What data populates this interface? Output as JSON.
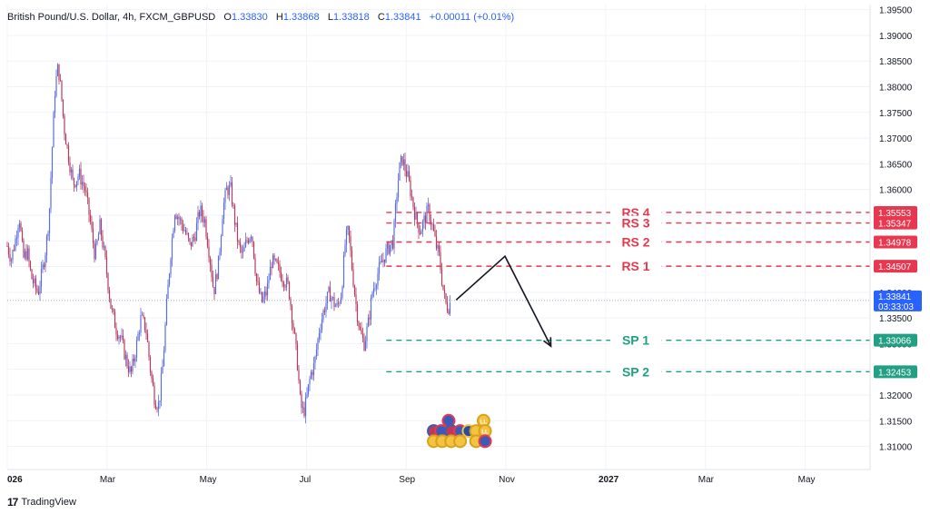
{
  "header": {
    "title": "British Pound/U.S. Dollar, 4h, FXCM_GBPUSD",
    "open_label": "O",
    "open": "1.33830",
    "high_label": "H",
    "high": "1.33868",
    "low_label": "L",
    "low": "1.33818",
    "close_label": "C",
    "close": "1.33841",
    "change": "+0.00011 (+0.01%)"
  },
  "brand": {
    "name": "TradingView",
    "logo_text": "17"
  },
  "colors": {
    "resistance": "#e8384f",
    "support": "#22a083",
    "up_candle": "#5b6ee1",
    "down_candle": "#b83b5e",
    "price_badge": "#2962ff",
    "grid": "#f0f3fa"
  },
  "chart_data": {
    "type": "candlestick",
    "title": "British Pound/U.S. Dollar, 4h, FXCM_GBPUSD",
    "y_ticks": [
      "1.39500",
      "1.39000",
      "1.38500",
      "1.38000",
      "1.37500",
      "1.37000",
      "1.36500",
      "1.36000",
      "1.35500",
      "1.35000",
      "1.34500",
      "1.34000",
      "1.33500",
      "1.33000",
      "1.32500",
      "1.32000",
      "1.31500",
      "1.31000"
    ],
    "ylim": [
      1.3055,
      1.396
    ],
    "x_ticks": [
      "026",
      "Mar",
      "May",
      "Jul",
      "Sep",
      "Nov",
      "2027",
      "Mar",
      "May"
    ],
    "x_tick_months": [
      0,
      2,
      4,
      6,
      8,
      10,
      12,
      14,
      16
    ],
    "xlim_months": [
      0,
      17.3
    ],
    "price_series": [
      {
        "m": 0.0,
        "p": 1.349
      },
      {
        "m": 0.08,
        "p": 1.3465
      },
      {
        "m": 0.16,
        "p": 1.35
      },
      {
        "m": 0.24,
        "p": 1.355
      },
      {
        "m": 0.32,
        "p": 1.3465
      },
      {
        "m": 0.4,
        "p": 1.348
      },
      {
        "m": 0.48,
        "p": 1.343
      },
      {
        "m": 0.56,
        "p": 1.341
      },
      {
        "m": 0.62,
        "p": 1.34
      },
      {
        "m": 0.7,
        "p": 1.344
      },
      {
        "m": 0.78,
        "p": 1.349
      },
      {
        "m": 0.84,
        "p": 1.355
      },
      {
        "m": 0.9,
        "p": 1.368
      },
      {
        "m": 0.96,
        "p": 1.38
      },
      {
        "m": 1.02,
        "p": 1.384
      },
      {
        "m": 1.08,
        "p": 1.379
      },
      {
        "m": 1.14,
        "p": 1.372
      },
      {
        "m": 1.22,
        "p": 1.367
      },
      {
        "m": 1.32,
        "p": 1.361
      },
      {
        "m": 1.44,
        "p": 1.363
      },
      {
        "m": 1.56,
        "p": 1.36
      },
      {
        "m": 1.66,
        "p": 1.354
      },
      {
        "m": 1.76,
        "p": 1.347
      },
      {
        "m": 1.86,
        "p": 1.353
      },
      {
        "m": 1.98,
        "p": 1.345
      },
      {
        "m": 2.08,
        "p": 1.337
      },
      {
        "m": 2.18,
        "p": 1.333
      },
      {
        "m": 2.28,
        "p": 1.331
      },
      {
        "m": 2.38,
        "p": 1.327
      },
      {
        "m": 2.48,
        "p": 1.324
      },
      {
        "m": 2.58,
        "p": 1.329
      },
      {
        "m": 2.68,
        "p": 1.335
      },
      {
        "m": 2.78,
        "p": 1.333
      },
      {
        "m": 2.88,
        "p": 1.324
      },
      {
        "m": 2.96,
        "p": 1.319
      },
      {
        "m": 3.04,
        "p": 1.318
      },
      {
        "m": 3.12,
        "p": 1.326
      },
      {
        "m": 3.2,
        "p": 1.338
      },
      {
        "m": 3.28,
        "p": 1.348
      },
      {
        "m": 3.36,
        "p": 1.356
      },
      {
        "m": 3.46,
        "p": 1.354
      },
      {
        "m": 3.56,
        "p": 1.352
      },
      {
        "m": 3.66,
        "p": 1.349
      },
      {
        "m": 3.76,
        "p": 1.351
      },
      {
        "m": 3.86,
        "p": 1.356
      },
      {
        "m": 3.96,
        "p": 1.354
      },
      {
        "m": 4.06,
        "p": 1.347
      },
      {
        "m": 4.14,
        "p": 1.34
      },
      {
        "m": 4.24,
        "p": 1.346
      },
      {
        "m": 4.32,
        "p": 1.356
      },
      {
        "m": 4.4,
        "p": 1.36
      },
      {
        "m": 4.48,
        "p": 1.36
      },
      {
        "m": 4.56,
        "p": 1.354
      },
      {
        "m": 4.64,
        "p": 1.349
      },
      {
        "m": 4.72,
        "p": 1.347
      },
      {
        "m": 4.8,
        "p": 1.35
      },
      {
        "m": 4.9,
        "p": 1.352
      },
      {
        "m": 5.0,
        "p": 1.342
      },
      {
        "m": 5.1,
        "p": 1.338
      },
      {
        "m": 5.2,
        "p": 1.34
      },
      {
        "m": 5.3,
        "p": 1.346
      },
      {
        "m": 5.4,
        "p": 1.345
      },
      {
        "m": 5.52,
        "p": 1.343
      },
      {
        "m": 5.64,
        "p": 1.341
      },
      {
        "m": 5.74,
        "p": 1.333
      },
      {
        "m": 5.82,
        "p": 1.326
      },
      {
        "m": 5.88,
        "p": 1.318
      },
      {
        "m": 5.94,
        "p": 1.3165
      },
      {
        "m": 6.0,
        "p": 1.319
      },
      {
        "m": 6.08,
        "p": 1.324
      },
      {
        "m": 6.16,
        "p": 1.326
      },
      {
        "m": 6.26,
        "p": 1.333
      },
      {
        "m": 6.36,
        "p": 1.337
      },
      {
        "m": 6.46,
        "p": 1.34
      },
      {
        "m": 6.54,
        "p": 1.338
      },
      {
        "m": 6.62,
        "p": 1.337
      },
      {
        "m": 6.7,
        "p": 1.34
      },
      {
        "m": 6.78,
        "p": 1.35
      },
      {
        "m": 6.84,
        "p": 1.352
      },
      {
        "m": 6.92,
        "p": 1.344
      },
      {
        "m": 7.0,
        "p": 1.337
      },
      {
        "m": 7.08,
        "p": 1.332
      },
      {
        "m": 7.16,
        "p": 1.33
      },
      {
        "m": 7.24,
        "p": 1.334
      },
      {
        "m": 7.32,
        "p": 1.34
      },
      {
        "m": 7.44,
        "p": 1.344
      },
      {
        "m": 7.56,
        "p": 1.347
      },
      {
        "m": 7.66,
        "p": 1.349
      },
      {
        "m": 7.74,
        "p": 1.35
      },
      {
        "m": 7.8,
        "p": 1.358
      },
      {
        "m": 7.86,
        "p": 1.364
      },
      {
        "m": 7.92,
        "p": 1.366
      },
      {
        "m": 7.98,
        "p": 1.364
      },
      {
        "m": 8.04,
        "p": 1.362
      },
      {
        "m": 8.12,
        "p": 1.358
      },
      {
        "m": 8.2,
        "p": 1.354
      },
      {
        "m": 8.28,
        "p": 1.352
      },
      {
        "m": 8.36,
        "p": 1.354
      },
      {
        "m": 8.44,
        "p": 1.356
      },
      {
        "m": 8.52,
        "p": 1.353
      },
      {
        "m": 8.6,
        "p": 1.349
      },
      {
        "m": 8.66,
        "p": 1.347
      },
      {
        "m": 8.72,
        "p": 1.342
      },
      {
        "m": 8.78,
        "p": 1.338
      },
      {
        "m": 8.84,
        "p": 1.337
      },
      {
        "m": 8.9,
        "p": 1.3384
      }
    ],
    "last_price": "1.33841",
    "countdown": "03:33:03",
    "levels": [
      {
        "name": "RS 4",
        "value": 1.35553,
        "value_label": "1.35553",
        "kind": "resistance"
      },
      {
        "name": "RS 3",
        "value": 1.35347,
        "value_label": "1.35347",
        "kind": "resistance"
      },
      {
        "name": "RS 2",
        "value": 1.34978,
        "value_label": "1.34978",
        "kind": "resistance"
      },
      {
        "name": "RS 1",
        "value": 1.34507,
        "value_label": "1.34507",
        "kind": "resistance"
      },
      {
        "name": "SP 1",
        "value": 1.33066,
        "value_label": "1.33066",
        "kind": "support"
      },
      {
        "name": "SP 2",
        "value": 1.32453,
        "value_label": "1.32453",
        "kind": "support"
      }
    ],
    "levels_start_month": 7.6,
    "projection": [
      {
        "m": 9.0,
        "p": 1.3385
      },
      {
        "m": 9.98,
        "p": 1.347
      },
      {
        "m": 10.9,
        "p": 1.3295
      }
    ],
    "events": [
      {
        "m": 8.85,
        "p": 1.315,
        "icon": "us-flag-icon"
      },
      {
        "m": 9.55,
        "p": 1.315,
        "icon": "gold-coin-icon",
        "text": "LL"
      },
      {
        "m": 8.55,
        "p": 1.313,
        "icon": "uk-flag-icon"
      },
      {
        "m": 8.7,
        "p": 1.313,
        "icon": "us-flag-icon"
      },
      {
        "m": 8.9,
        "p": 1.313,
        "icon": "uk-flag-icon"
      },
      {
        "m": 9.08,
        "p": 1.313,
        "icon": "us-flag-icon"
      },
      {
        "m": 9.25,
        "p": 1.313,
        "icon": "eu-flag-icon"
      },
      {
        "m": 9.4,
        "p": 1.313,
        "icon": "gold-coin-icon"
      },
      {
        "m": 9.58,
        "p": 1.313,
        "icon": "gold-coin-icon",
        "text": "LL"
      },
      {
        "m": 8.55,
        "p": 1.311,
        "icon": "gold-coin-icon"
      },
      {
        "m": 8.72,
        "p": 1.311,
        "icon": "gold-coin-icon"
      },
      {
        "m": 8.9,
        "p": 1.311,
        "icon": "gold-coin-icon"
      },
      {
        "m": 9.08,
        "p": 1.311,
        "icon": "gold-coin-icon"
      },
      {
        "m": 9.4,
        "p": 1.311,
        "icon": "gold-coin-icon"
      },
      {
        "m": 9.58,
        "p": 1.311,
        "icon": "us-flag-icon"
      }
    ]
  }
}
